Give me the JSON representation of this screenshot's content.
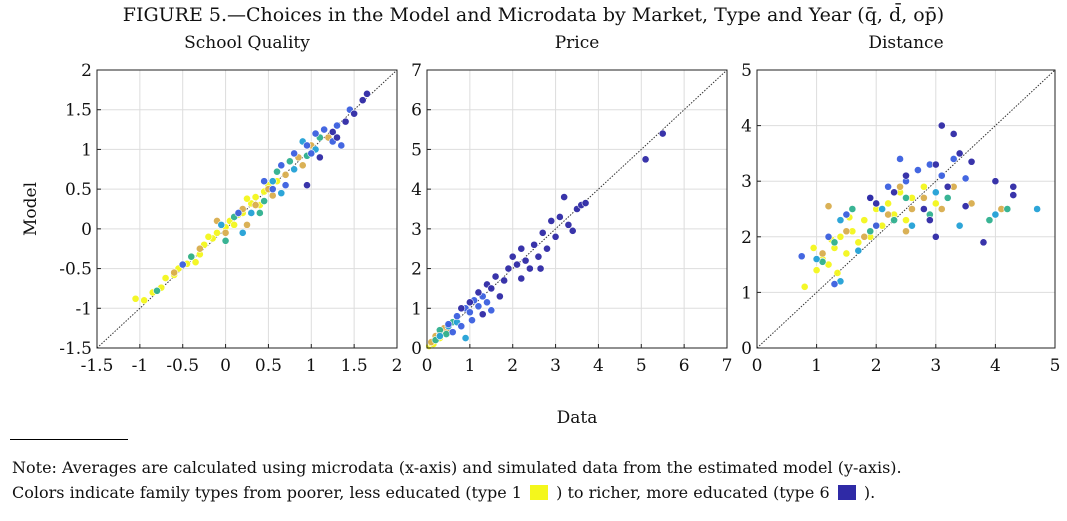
{
  "figure": {
    "title": "FIGURE 5.—Choices in the Model and Microdata by Market, Type and Year (q̄, d̄, op̄)",
    "xlabel": "Data",
    "ylabel": "Model",
    "note_line1": "Note: Averages are calculated using microdata (x-axis) and simulated data from the estimated model (y-axis).",
    "note_line2_a": "Colors indicate family types from poorer, less educated (type 1",
    "note_line2_b": ") to richer, more educated (type 6",
    "note_line2_c": ").",
    "type1_color": "#f4f71c",
    "type6_color": "#2f2aa6"
  },
  "chart_data": [
    {
      "type": "scatter",
      "title": "School Quality",
      "xlim": [
        -1.5,
        2
      ],
      "ylim": [
        -1.5,
        2
      ],
      "xticks": [
        "-1.5",
        "-1",
        "-0.5",
        "0",
        "0.5",
        "1",
        "1.5",
        "2"
      ],
      "yticks": [
        "-1.5",
        "-1",
        "-0.5",
        "0",
        "0.5",
        "1",
        "1.5",
        "2"
      ],
      "grid": true,
      "reference_line": "45-degree",
      "series": [
        {
          "values": [
            [
              -1.05,
              -0.88
            ],
            [
              -0.95,
              -0.9
            ],
            [
              -0.85,
              -0.8
            ],
            [
              -0.75,
              -0.74
            ],
            [
              -0.7,
              -0.62
            ],
            [
              -0.6,
              -0.58
            ],
            [
              -0.55,
              -0.5
            ],
            [
              -0.45,
              -0.44
            ],
            [
              -0.4,
              -0.35
            ],
            [
              -0.3,
              -0.32
            ],
            [
              -0.25,
              -0.2
            ],
            [
              -0.15,
              -0.12
            ],
            [
              -0.1,
              -0.05
            ],
            [
              0.0,
              0.02
            ],
            [
              0.05,
              0.1
            ],
            [
              0.15,
              0.18
            ],
            [
              0.2,
              0.2
            ],
            [
              0.3,
              0.32
            ],
            [
              0.35,
              0.4
            ],
            [
              0.45,
              0.47
            ],
            [
              0.5,
              0.55
            ],
            [
              0.6,
              0.6
            ],
            [
              -0.2,
              -0.1
            ],
            [
              0.1,
              0.05
            ],
            [
              0.25,
              0.38
            ],
            [
              -0.35,
              -0.42
            ],
            [
              0.4,
              0.3
            ]
          ]
        },
        {
          "values": [
            [
              -0.6,
              -0.55
            ],
            [
              -0.3,
              -0.25
            ],
            [
              0.0,
              -0.05
            ],
            [
              0.2,
              0.25
            ],
            [
              0.35,
              0.3
            ],
            [
              0.5,
              0.5
            ],
            [
              0.7,
              0.68
            ],
            [
              0.85,
              0.9
            ],
            [
              1.0,
              1.05
            ],
            [
              1.2,
              1.15
            ],
            [
              -0.1,
              0.1
            ],
            [
              0.55,
              0.42
            ],
            [
              0.9,
              0.8
            ],
            [
              0.25,
              0.05
            ]
          ]
        },
        {
          "values": [
            [
              -0.8,
              -0.78
            ],
            [
              -0.4,
              -0.35
            ],
            [
              0.1,
              0.15
            ],
            [
              0.45,
              0.35
            ],
            [
              0.6,
              0.72
            ],
            [
              0.75,
              0.85
            ],
            [
              0.95,
              0.92
            ],
            [
              1.1,
              1.15
            ],
            [
              0.4,
              0.2
            ],
            [
              0.0,
              -0.15
            ]
          ]
        },
        {
          "values": [
            [
              0.3,
              0.2
            ],
            [
              0.55,
              0.6
            ],
            [
              0.8,
              0.75
            ],
            [
              1.05,
              1.0
            ],
            [
              0.65,
              0.45
            ],
            [
              0.2,
              -0.05
            ],
            [
              0.9,
              1.1
            ],
            [
              -0.05,
              0.05
            ]
          ]
        },
        {
          "values": [
            [
              -0.5,
              -0.45
            ],
            [
              0.15,
              0.2
            ],
            [
              0.55,
              0.5
            ],
            [
              0.65,
              0.8
            ],
            [
              0.8,
              0.95
            ],
            [
              0.95,
              1.05
            ],
            [
              1.05,
              1.2
            ],
            [
              1.15,
              1.25
            ],
            [
              1.3,
              1.3
            ],
            [
              1.45,
              1.5
            ],
            [
              0.7,
              0.55
            ],
            [
              1.25,
              1.1
            ],
            [
              0.45,
              0.6
            ],
            [
              1.0,
              0.95
            ],
            [
              1.35,
              1.05
            ]
          ]
        },
        {
          "values": [
            [
              1.25,
              1.22
            ],
            [
              1.4,
              1.35
            ],
            [
              1.5,
              1.45
            ],
            [
              1.6,
              1.62
            ],
            [
              1.65,
              1.7
            ],
            [
              0.95,
              0.55
            ],
            [
              1.1,
              0.9
            ],
            [
              1.3,
              1.15
            ]
          ]
        }
      ]
    },
    {
      "type": "scatter",
      "title": "Price",
      "xlim": [
        0,
        7
      ],
      "ylim": [
        0,
        7
      ],
      "xticks": [
        "0",
        "1",
        "2",
        "3",
        "4",
        "5",
        "6",
        "7"
      ],
      "yticks": [
        "0",
        "1",
        "2",
        "3",
        "4",
        "5",
        "6",
        "7"
      ],
      "grid": true,
      "reference_line": "45-degree",
      "series": [
        {
          "values": [
            [
              0.05,
              0.05
            ],
            [
              0.1,
              0.12
            ],
            [
              0.15,
              0.1
            ],
            [
              0.2,
              0.25
            ],
            [
              0.3,
              0.25
            ],
            [
              0.35,
              0.4
            ],
            [
              0.45,
              0.4
            ]
          ]
        },
        {
          "values": [
            [
              0.1,
              0.15
            ],
            [
              0.2,
              0.3
            ],
            [
              0.3,
              0.35
            ],
            [
              0.4,
              0.5
            ],
            [
              0.5,
              0.45
            ]
          ]
        },
        {
          "values": [
            [
              0.2,
              0.2
            ],
            [
              0.3,
              0.45
            ],
            [
              0.45,
              0.35
            ],
            [
              0.6,
              0.65
            ]
          ]
        },
        {
          "values": [
            [
              0.3,
              0.3
            ],
            [
              0.5,
              0.55
            ],
            [
              0.7,
              0.65
            ],
            [
              0.9,
              0.25
            ]
          ]
        },
        {
          "values": [
            [
              0.5,
              0.6
            ],
            [
              0.7,
              0.8
            ],
            [
              0.8,
              0.55
            ],
            [
              0.9,
              1.0
            ],
            [
              1.0,
              0.9
            ],
            [
              1.1,
              1.2
            ],
            [
              1.2,
              1.05
            ],
            [
              1.3,
              1.3
            ],
            [
              1.4,
              1.15
            ],
            [
              1.5,
              0.95
            ],
            [
              0.6,
              0.4
            ],
            [
              1.05,
              0.7
            ]
          ]
        },
        {
          "values": [
            [
              0.8,
              1.0
            ],
            [
              1.0,
              1.15
            ],
            [
              1.2,
              1.4
            ],
            [
              1.4,
              1.6
            ],
            [
              1.5,
              1.5
            ],
            [
              1.6,
              1.8
            ],
            [
              1.8,
              1.7
            ],
            [
              1.9,
              2.0
            ],
            [
              2.0,
              2.3
            ],
            [
              2.1,
              2.1
            ],
            [
              2.2,
              2.5
            ],
            [
              2.3,
              2.2
            ],
            [
              2.5,
              2.6
            ],
            [
              2.6,
              2.3
            ],
            [
              2.7,
              2.9
            ],
            [
              2.8,
              2.5
            ],
            [
              2.9,
              3.2
            ],
            [
              3.0,
              2.8
            ],
            [
              3.1,
              3.3
            ],
            [
              3.2,
              3.8
            ],
            [
              3.3,
              3.1
            ],
            [
              3.5,
              3.5
            ],
            [
              3.6,
              3.6
            ],
            [
              3.7,
              3.65
            ],
            [
              2.4,
              2.0
            ],
            [
              2.2,
              1.75
            ],
            [
              1.7,
              1.3
            ],
            [
              3.4,
              2.95
            ],
            [
              2.65,
              2.0
            ],
            [
              1.3,
              0.85
            ],
            [
              5.1,
              4.75
            ],
            [
              5.5,
              5.4
            ]
          ]
        }
      ]
    },
    {
      "type": "scatter",
      "title": "Distance",
      "xlim": [
        0,
        5
      ],
      "ylim": [
        0,
        5
      ],
      "xticks": [
        "0",
        "1",
        "2",
        "3",
        "4",
        "5"
      ],
      "yticks": [
        "0",
        "1",
        "2",
        "3",
        "4",
        "5"
      ],
      "grid": true,
      "reference_line": "45-degree",
      "series": [
        {
          "values": [
            [
              0.8,
              1.1
            ],
            [
              1.0,
              1.4
            ],
            [
              1.1,
              1.6
            ],
            [
              1.2,
              1.5
            ],
            [
              1.3,
              1.8
            ],
            [
              1.4,
              2.0
            ],
            [
              1.5,
              1.7
            ],
            [
              1.6,
              2.1
            ],
            [
              1.7,
              1.9
            ],
            [
              1.8,
              2.3
            ],
            [
              1.9,
              2.0
            ],
            [
              2.0,
              2.5
            ],
            [
              2.1,
              2.2
            ],
            [
              2.2,
              2.6
            ],
            [
              2.3,
              2.4
            ],
            [
              2.4,
              2.8
            ],
            [
              2.5,
              2.3
            ],
            [
              2.6,
              2.7
            ],
            [
              2.8,
              2.9
            ],
            [
              3.0,
              2.6
            ],
            [
              1.25,
              1.95
            ],
            [
              1.55,
              2.35
            ],
            [
              0.95,
              1.8
            ],
            [
              1.35,
              1.35
            ]
          ]
        },
        {
          "values": [
            [
              1.1,
              1.7
            ],
            [
              1.5,
              2.1
            ],
            [
              1.8,
              2.0
            ],
            [
              2.0,
              2.2
            ],
            [
              2.2,
              2.4
            ],
            [
              2.4,
              2.9
            ],
            [
              2.6,
              2.5
            ],
            [
              2.8,
              2.7
            ],
            [
              3.1,
              2.5
            ],
            [
              3.3,
              2.9
            ],
            [
              3.6,
              2.6
            ],
            [
              4.1,
              2.5
            ],
            [
              1.2,
              2.55
            ],
            [
              2.5,
              2.1
            ]
          ]
        },
        {
          "values": [
            [
              1.3,
              1.9
            ],
            [
              1.6,
              2.5
            ],
            [
              1.9,
              2.1
            ],
            [
              2.3,
              2.3
            ],
            [
              2.5,
              2.7
            ],
            [
              2.9,
              2.4
            ],
            [
              3.2,
              2.7
            ],
            [
              3.9,
              2.3
            ],
            [
              4.2,
              2.5
            ],
            [
              1.1,
              1.55
            ]
          ]
        },
        {
          "values": [
            [
              1.0,
              1.6
            ],
            [
              1.4,
              2.3
            ],
            [
              1.7,
              1.75
            ],
            [
              2.1,
              2.5
            ],
            [
              2.6,
              2.2
            ],
            [
              3.0,
              2.8
            ],
            [
              3.4,
              2.2
            ],
            [
              4.0,
              2.4
            ],
            [
              4.7,
              2.5
            ],
            [
              1.4,
              1.2
            ]
          ]
        },
        {
          "values": [
            [
              0.75,
              1.65
            ],
            [
              1.2,
              2.0
            ],
            [
              1.5,
              2.4
            ],
            [
              1.9,
              2.7
            ],
            [
              2.2,
              2.9
            ],
            [
              2.5,
              3.0
            ],
            [
              2.7,
              3.2
            ],
            [
              2.9,
              3.3
            ],
            [
              3.1,
              3.1
            ],
            [
              3.3,
              3.4
            ],
            [
              2.4,
              3.4
            ],
            [
              3.5,
              3.05
            ],
            [
              1.3,
              1.15
            ],
            [
              2.0,
              2.2
            ]
          ]
        },
        {
          "values": [
            [
              2.0,
              2.6
            ],
            [
              2.3,
              2.8
            ],
            [
              2.5,
              3.1
            ],
            [
              2.8,
              2.5
            ],
            [
              3.0,
              3.3
            ],
            [
              3.2,
              2.9
            ],
            [
              3.4,
              3.5
            ],
            [
              3.6,
              3.35
            ],
            [
              3.1,
              4.0
            ],
            [
              3.3,
              3.85
            ],
            [
              4.0,
              3.0
            ],
            [
              4.3,
              2.9
            ],
            [
              3.8,
              1.9
            ],
            [
              3.0,
              2.0
            ],
            [
              2.9,
              2.3
            ],
            [
              1.9,
              2.7
            ],
            [
              3.5,
              2.55
            ],
            [
              4.3,
              2.75
            ]
          ]
        }
      ]
    }
  ]
}
